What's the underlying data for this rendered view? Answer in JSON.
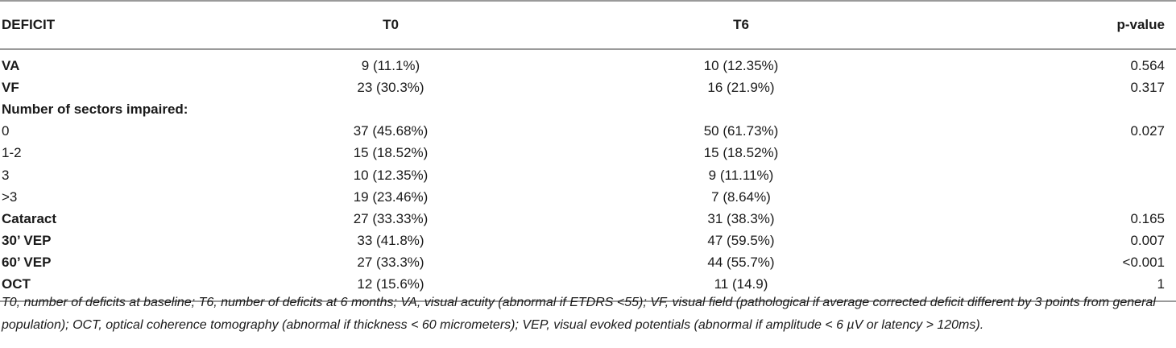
{
  "table": {
    "headers": [
      "DEFICIT",
      "T0",
      "T6",
      "p-value"
    ],
    "rows": [
      {
        "label": "VA",
        "bold": true,
        "t0": "9 (11.1%)",
        "t6": "10 (12.35%)",
        "p": "0.564"
      },
      {
        "label": "VF",
        "bold": true,
        "t0": "23 (30.3%)",
        "t6": "16 (21.9%)",
        "p": "0.317"
      },
      {
        "label": "Number of sectors impaired:",
        "bold": true,
        "t0": "",
        "t6": "",
        "p": ""
      },
      {
        "label": "0",
        "bold": false,
        "t0": "37 (45.68%)",
        "t6": "50 (61.73%)",
        "p": "0.027"
      },
      {
        "label": "1-2",
        "bold": false,
        "t0": "15 (18.52%)",
        "t6": "15 (18.52%)",
        "p": ""
      },
      {
        "label": "3",
        "bold": false,
        "t0": "10 (12.35%)",
        "t6": "9 (11.11%)",
        "p": ""
      },
      {
        "label": ">3",
        "bold": false,
        "t0": "19 (23.46%)",
        "t6": "7 (8.64%)",
        "p": ""
      },
      {
        "label": "Cataract",
        "bold": true,
        "t0": "27 (33.33%)",
        "t6": "31 (38.3%)",
        "p": "0.165"
      },
      {
        "label": "30’ VEP",
        "bold": true,
        "t0": "33 (41.8%)",
        "t6": "47 (59.5%)",
        "p": "0.007"
      },
      {
        "label": "60’ VEP",
        "bold": true,
        "t0": "27 (33.3%)",
        "t6": "44 (55.7%)",
        "p": "<0.001"
      },
      {
        "label": "OCT",
        "bold": true,
        "t0": "12 (15.6%)",
        "t6": "11 (14.9)",
        "p": "1"
      }
    ]
  },
  "footnote": "T0, number of deficits at baseline; T6, number of deficits at 6 months; VA, visual acuity (abnormal if ETDRS <55); VF, visual field (pathological if average corrected deficit different by 3 points from general population); OCT, optical coherence tomography (abnormal if thickness < 60 micrometers); VEP, visual evoked potentials (abnormal if amplitude < 6 µV or latency > 120ms)."
}
